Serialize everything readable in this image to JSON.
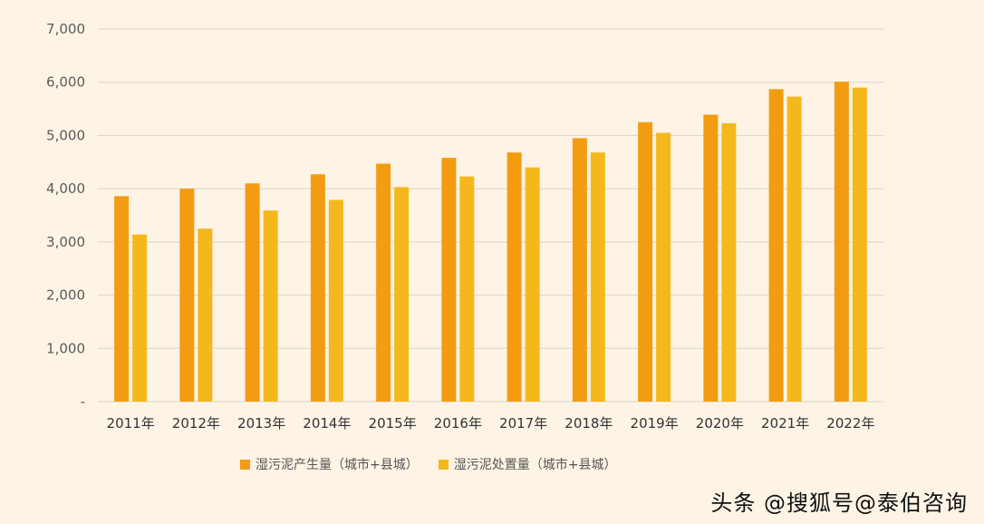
{
  "chart_data": {
    "type": "bar",
    "categories": [
      "2011年",
      "2012年",
      "2013年",
      "2014年",
      "2015年",
      "2016年",
      "2017年",
      "2018年",
      "2019年",
      "2020年",
      "2021年",
      "2022年"
    ],
    "series": [
      {
        "name": "湿污泥产生量（城市+县城）",
        "color": "#f39c12",
        "values": [
          3860,
          4000,
          4100,
          4270,
          4470,
          4580,
          4680,
          4950,
          5250,
          5390,
          5870,
          6010
        ]
      },
      {
        "name": "湿污泥处置量（城市+县城）",
        "color": "#f5b81c",
        "values": [
          3140,
          3250,
          3590,
          3790,
          4030,
          4230,
          4400,
          4680,
          5050,
          5230,
          5730,
          5900
        ]
      }
    ],
    "yticks": [
      0,
      1000,
      2000,
      3000,
      4000,
      5000,
      6000,
      7000
    ],
    "ytick_labels": [
      "-",
      "1,000",
      "2,000",
      "3,000",
      "4,000",
      "5,000",
      "6,000",
      "7,000"
    ],
    "ylim": [
      0,
      7000
    ],
    "title": "",
    "xlabel": "",
    "ylabel": "",
    "grid": true,
    "legend_position": "bottom"
  },
  "watermark": {
    "text": "头条 @搜狐号@泰伯咨询"
  }
}
